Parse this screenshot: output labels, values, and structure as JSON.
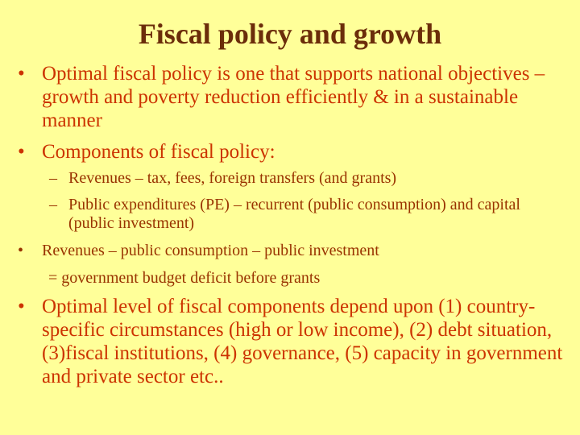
{
  "slide": {
    "title": "Fiscal policy and growth",
    "bullet_char": "•",
    "dash_char": "–",
    "bullets": [
      {
        "text": "Optimal fiscal policy is one that supports national objectives – growth and poverty reduction efficiently & in a sustainable manner"
      },
      {
        "text": "Components of fiscal policy:"
      },
      {
        "text": "Revenues – tax, fees, foreign transfers (and grants)"
      },
      {
        "text": "Public expenditures (PE) – recurrent (public consumption) and capital (public investment)"
      },
      {
        "text": "Revenues – public consumption – public investment",
        "continuation": "= government budget deficit before grants"
      },
      {
        "text": "Optimal level of fiscal components depend upon (1) country-specific  circumstances (high or low income), (2) debt situation, (3)fiscal institutions, (4) governance, (5) capacity in government and private sector etc.."
      }
    ]
  }
}
